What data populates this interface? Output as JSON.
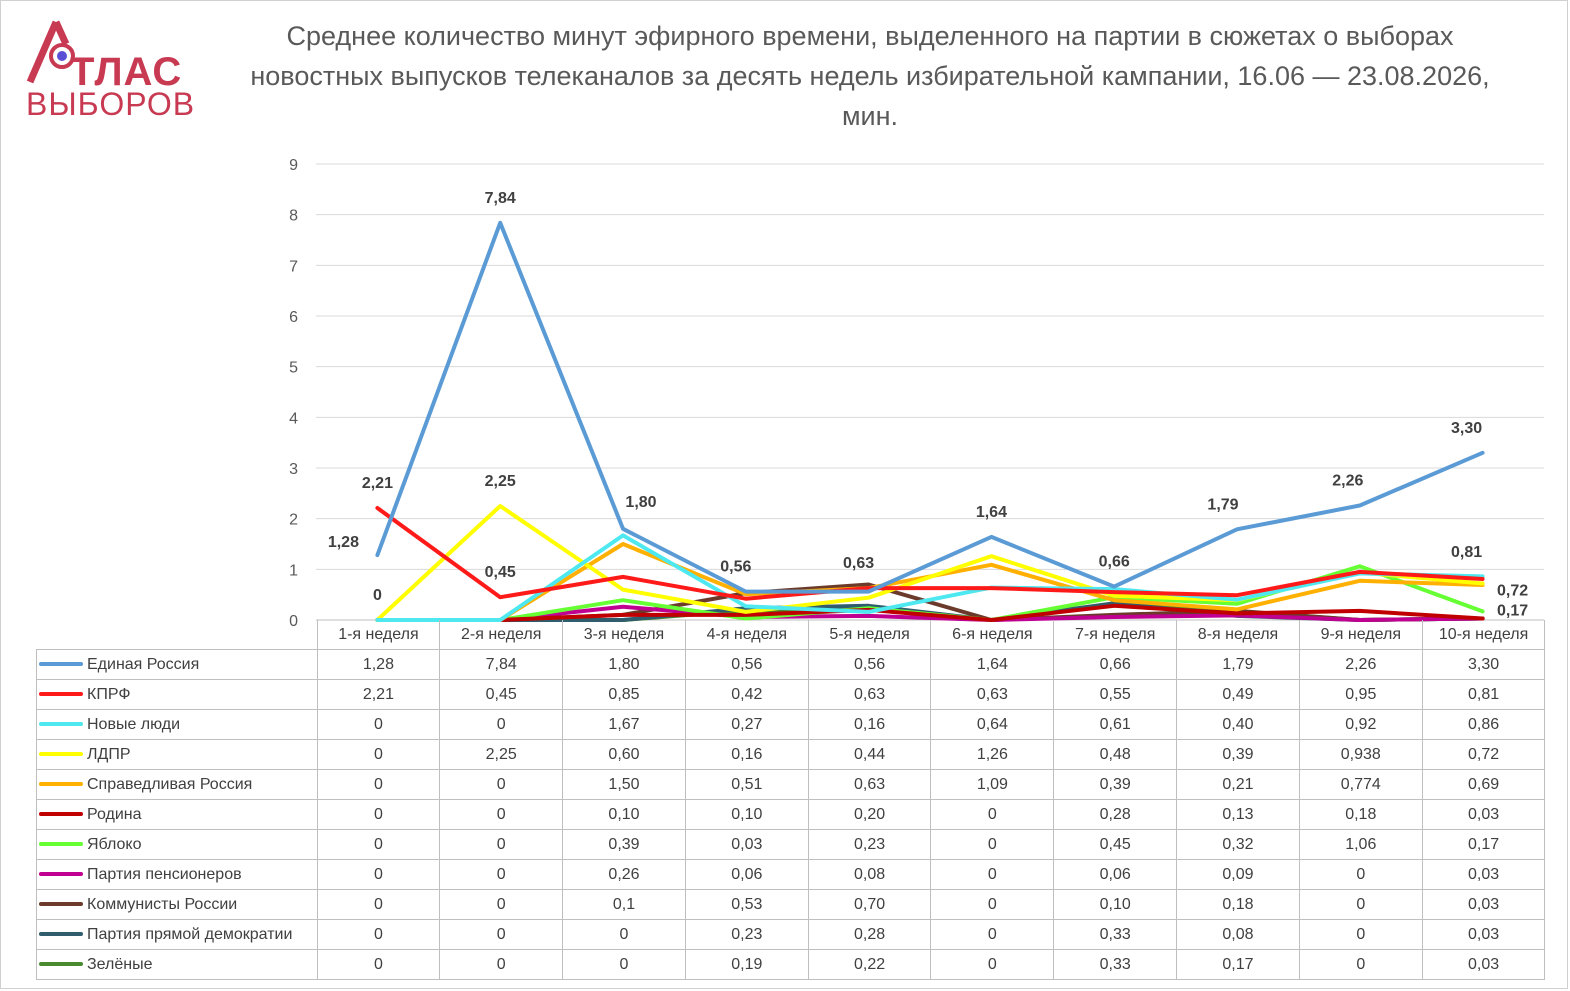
{
  "logo": {
    "top": "ТЛАС",
    "bottom": "ВЫБОРОВ",
    "accent": "#c83a52",
    "accent2": "#5b4fd6"
  },
  "title": "Среднее количество минут эфирного времени, выделенного на партии в сюжетах о выборах новостных выпусков телеканалов за десять недель избирательной кампании, 16.06 — 23.08.2026, мин.",
  "chart_data": {
    "type": "line",
    "ylim": [
      0,
      9
    ],
    "yticks": [
      0,
      1,
      2,
      3,
      4,
      5,
      6,
      7,
      8,
      9
    ],
    "grid": true,
    "categories": [
      "1-я неделя",
      "2-я неделя",
      "3-я неделя",
      "4-я неделя",
      "5-я неделя",
      "6-я неделя",
      "7-я неделя",
      "8-я неделя",
      "9-я неделя",
      "10-я неделя"
    ],
    "series": [
      {
        "name": "Единая Россия",
        "color": "#5b9bd5",
        "values": [
          1.28,
          7.84,
          1.8,
          0.56,
          0.56,
          1.64,
          0.66,
          1.79,
          2.26,
          3.3
        ],
        "cells": [
          "1,28",
          "7,84",
          "1,80",
          "0,56",
          "0,56",
          "1,64",
          "0,66",
          "1,79",
          "2,26",
          "3,30"
        ]
      },
      {
        "name": "КПРФ",
        "color": "#ff1a1a",
        "values": [
          2.21,
          0.45,
          0.85,
          0.42,
          0.63,
          0.63,
          0.55,
          0.49,
          0.95,
          0.81
        ],
        "cells": [
          "2,21",
          "0,45",
          "0,85",
          "0,42",
          "0,63",
          "0,63",
          "0,55",
          "0,49",
          "0,95",
          "0,81"
        ]
      },
      {
        "name": "Новые люди",
        "color": "#4de8f0",
        "values": [
          0,
          0,
          1.67,
          0.27,
          0.16,
          0.64,
          0.61,
          0.4,
          0.92,
          0.86
        ],
        "cells": [
          "0",
          "0",
          "1,67",
          "0,27",
          "0,16",
          "0,64",
          "0,61",
          "0,40",
          "0,92",
          "0,86"
        ]
      },
      {
        "name": "ЛДПР",
        "color": "#ffff00",
        "values": [
          0,
          2.25,
          0.6,
          0.16,
          0.44,
          1.26,
          0.48,
          0.39,
          0.938,
          0.72
        ],
        "cells": [
          "0",
          "2,25",
          "0,60",
          "0,16",
          "0,44",
          "1,26",
          "0,48",
          "0,39",
          "0,938",
          "0,72"
        ]
      },
      {
        "name": "Справедливая Россия",
        "color": "#ffb000",
        "values": [
          0,
          0,
          1.5,
          0.51,
          0.63,
          1.09,
          0.39,
          0.21,
          0.774,
          0.69
        ],
        "cells": [
          "0",
          "0",
          "1,50",
          "0,51",
          "0,63",
          "1,09",
          "0,39",
          "0,21",
          "0,774",
          "0,69"
        ]
      },
      {
        "name": "Родина",
        "color": "#c00000",
        "values": [
          0,
          0,
          0.1,
          0.1,
          0.2,
          0,
          0.28,
          0.13,
          0.18,
          0.03
        ],
        "cells": [
          "0",
          "0",
          "0,10",
          "0,10",
          "0,20",
          "0",
          "0,28",
          "0,13",
          "0,18",
          "0,03"
        ]
      },
      {
        "name": "Яблоко",
        "color": "#66ff33",
        "values": [
          0,
          0,
          0.39,
          0.03,
          0.23,
          0,
          0.45,
          0.32,
          1.06,
          0.17
        ],
        "cells": [
          "0",
          "0",
          "0,39",
          "0,03",
          "0,23",
          "0",
          "0,45",
          "0,32",
          "1,06",
          "0,17"
        ]
      },
      {
        "name": "Партия пенсионеров",
        "color": "#c00090",
        "values": [
          0,
          0,
          0.26,
          0.06,
          0.08,
          0,
          0.06,
          0.09,
          0,
          0.03
        ],
        "cells": [
          "0",
          "0",
          "0,26",
          "0,06",
          "0,08",
          "0",
          "0,06",
          "0,09",
          "0",
          "0,03"
        ]
      },
      {
        "name": "Коммунисты России",
        "color": "#6b3a2a",
        "values": [
          0,
          0,
          0.1,
          0.53,
          0.7,
          0,
          0.1,
          0.18,
          0,
          0.03
        ],
        "cells": [
          "0",
          "0",
          "0,1",
          "0,53",
          "0,70",
          "0",
          "0,10",
          "0,18",
          "0",
          "0,03"
        ]
      },
      {
        "name": "Партия прямой демократии",
        "color": "#2f5d6e",
        "values": [
          0,
          0,
          0,
          0.23,
          0.28,
          0,
          0.33,
          0.08,
          0,
          0.03
        ],
        "cells": [
          "0",
          "0",
          "0",
          "0,23",
          "0,28",
          "0",
          "0,33",
          "0,08",
          "0",
          "0,03"
        ]
      },
      {
        "name": "Зелёные",
        "color": "#4a8a2f",
        "values": [
          0,
          0,
          0,
          0.19,
          0.22,
          0,
          0.33,
          0.17,
          0,
          0.03
        ],
        "cells": [
          "0",
          "0",
          "0",
          "0,19",
          "0,22",
          "0",
          "0,33",
          "0,17",
          "0",
          "0,03"
        ]
      }
    ],
    "data_labels": [
      {
        "series": 0,
        "index": 0,
        "text": "1,28"
      },
      {
        "series": 0,
        "index": 1,
        "text": "7,84"
      },
      {
        "series": 0,
        "index": 2,
        "text": "1,80"
      },
      {
        "series": 0,
        "index": 3,
        "text": "0,56"
      },
      {
        "series": 1,
        "index": 4,
        "text": "0,63"
      },
      {
        "series": 0,
        "index": 5,
        "text": "1,64"
      },
      {
        "series": 0,
        "index": 6,
        "text": "0,66"
      },
      {
        "series": 0,
        "index": 7,
        "text": "1,79"
      },
      {
        "series": 0,
        "index": 8,
        "text": "2,26"
      },
      {
        "series": 0,
        "index": 9,
        "text": "3,30"
      },
      {
        "series": 1,
        "index": 0,
        "text": "2,21"
      },
      {
        "series": 1,
        "index": 1,
        "text": "0,45"
      },
      {
        "series": 3,
        "index": 1,
        "text": "2,25"
      },
      {
        "series": 2,
        "index": 0,
        "text": "0"
      },
      {
        "series": 1,
        "index": 9,
        "text": "0,81"
      },
      {
        "series": 3,
        "index": 9,
        "text": "0,72"
      },
      {
        "series": 6,
        "index": 9,
        "text": "0,17"
      }
    ]
  }
}
